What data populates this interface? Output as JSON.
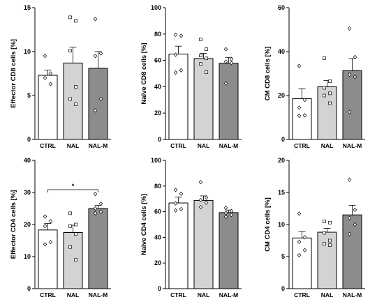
{
  "chart_data": [
    {
      "type": "bar",
      "ylabel": "Effector CD8 cells [%]",
      "categories": [
        "CTRL",
        "NAL",
        "NAL-M"
      ],
      "yticks": [
        0,
        5,
        10,
        15
      ],
      "ylim": [
        0,
        15
      ],
      "values": [
        7.3,
        8.7,
        8.1
      ],
      "errors": [
        0.6,
        1.8,
        1.9
      ],
      "points": [
        [
          9.5,
          7.5,
          7.0,
          6.3
        ],
        [
          13.9,
          13.5,
          10.1,
          6.0,
          4.6,
          4.0
        ],
        [
          13.7,
          9.8,
          9.5,
          4.6,
          3.3
        ]
      ],
      "marker": [
        "diamond",
        "square",
        "diamond"
      ],
      "colors": [
        "#ffffff",
        "#d3d3d3",
        "#8c8c8c"
      ],
      "significance": null
    },
    {
      "type": "bar",
      "ylabel": "Naïve CD8 cells [%]",
      "categories": [
        "CTRL",
        "NAL",
        "NAL-M"
      ],
      "yticks": [
        0,
        20,
        40,
        60,
        80,
        100
      ],
      "ylim": [
        0,
        100
      ],
      "values": [
        64.8,
        61.4,
        57.8
      ],
      "errors": [
        6.0,
        4.0,
        4.5
      ],
      "points": [
        [
          79.5,
          78.7,
          64.3,
          52.5,
          50.8
        ],
        [
          76.0,
          68.5,
          63.7,
          61.5,
          57.3,
          51.0
        ],
        [
          68.5,
          61.0,
          59.0,
          58.0,
          42.5
        ]
      ],
      "marker": [
        "diamond",
        "square",
        "diamond"
      ],
      "colors": [
        "#ffffff",
        "#d3d3d3",
        "#8c8c8c"
      ],
      "significance": null
    },
    {
      "type": "bar",
      "ylabel": "CM CD8 cells [%]",
      "categories": [
        "CTRL",
        "NAL",
        "NAL-M"
      ],
      "yticks": [
        0,
        20,
        40,
        60
      ],
      "ylim": [
        0,
        60
      ],
      "values": [
        18.6,
        24.0,
        31.3
      ],
      "errors": [
        4.5,
        2.8,
        5.5
      ],
      "points": [
        [
          33.5,
          18.0,
          14.5,
          11.0,
          10.8
        ],
        [
          37.0,
          26.5,
          23.5,
          21.0,
          20.0,
          16.5
        ],
        [
          50.5,
          37.5,
          29.5,
          28.5,
          12.5
        ]
      ],
      "marker": [
        "diamond",
        "square",
        "diamond"
      ],
      "colors": [
        "#ffffff",
        "#d3d3d3",
        "#8c8c8c"
      ],
      "significance": null
    },
    {
      "type": "bar",
      "ylabel": "Effector CD4 cells [%]",
      "categories": [
        "CTRL",
        "NAL",
        "NAL-M"
      ],
      "yticks": [
        0,
        10,
        20,
        30,
        40
      ],
      "ylim": [
        0,
        40
      ],
      "values": [
        18.3,
        17.5,
        25.0
      ],
      "errors": [
        2.0,
        2.3,
        1.0
      ],
      "points": [
        [
          22.5,
          21.0,
          19.5,
          14.5,
          13.8
        ],
        [
          23.5,
          20.0,
          19.5,
          17.0,
          13.0,
          9.0
        ],
        [
          29.5,
          26.5,
          25.0,
          24.0,
          23.5
        ]
      ],
      "marker": [
        "diamond",
        "square",
        "diamond"
      ],
      "colors": [
        "#ffffff",
        "#d3d3d3",
        "#8c8c8c"
      ],
      "significance": {
        "from": 0,
        "to": 2,
        "label": "*"
      }
    },
    {
      "type": "bar",
      "ylabel": "Naïve CD4 cells [%]",
      "categories": [
        "CTRL",
        "NAL",
        "NAL-M"
      ],
      "yticks": [
        0,
        20,
        40,
        60,
        80,
        100
      ],
      "ylim": [
        0,
        100
      ],
      "values": [
        66.8,
        68.8,
        59.3
      ],
      "errors": [
        4.5,
        3.5,
        2.0
      ],
      "points": [
        [
          77.0,
          74.0,
          66.5,
          62.0,
          61.0
        ],
        [
          83.0,
          71.0,
          69.0,
          67.0,
          63.5
        ],
        [
          63.0,
          60.5,
          59.0,
          57.5,
          56.0
        ]
      ],
      "marker": [
        "diamond",
        "diamond",
        "diamond"
      ],
      "colors": [
        "#ffffff",
        "#d3d3d3",
        "#8c8c8c"
      ],
      "significance": null
    },
    {
      "type": "bar",
      "ylabel": "CM CD4 cells [%]",
      "categories": [
        "CTRL",
        "NAL",
        "NAL-M"
      ],
      "yticks": [
        0,
        5,
        10,
        15,
        20
      ],
      "ylim": [
        0,
        20
      ],
      "values": [
        7.9,
        8.8,
        11.5
      ],
      "errors": [
        1.0,
        0.6,
        1.5
      ],
      "points": [
        [
          11.7,
          8.0,
          7.3,
          6.0,
          5.2
        ],
        [
          10.5,
          10.3,
          8.7,
          7.5,
          7.0,
          6.8
        ],
        [
          17.0,
          12.3,
          11.0,
          10.0,
          8.5
        ]
      ],
      "marker": [
        "diamond",
        "square",
        "diamond"
      ],
      "colors": [
        "#ffffff",
        "#d3d3d3",
        "#8c8c8c"
      ],
      "significance": null
    }
  ]
}
